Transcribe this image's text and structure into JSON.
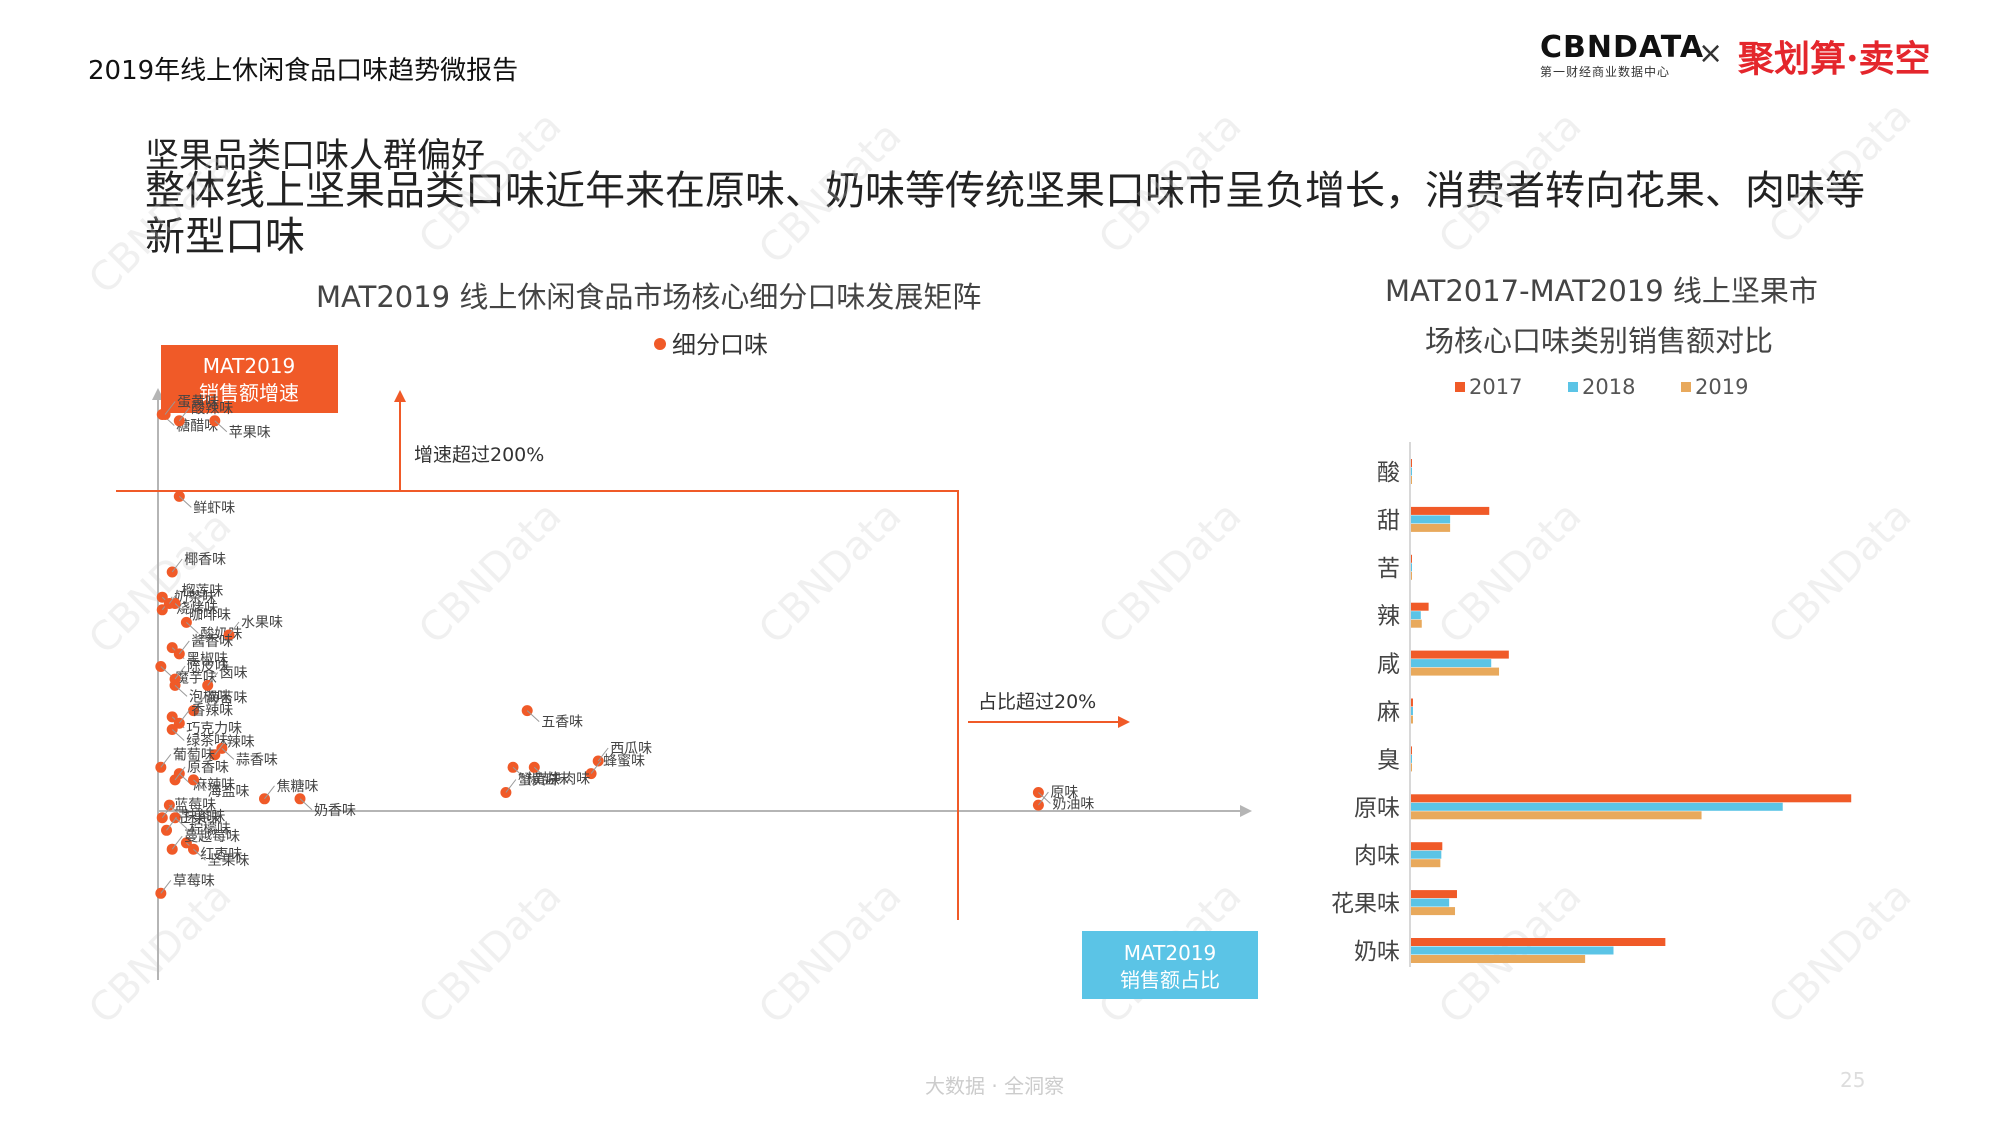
{
  "header": {
    "report_title": "2019年线上休闲食品口味趋势微报告",
    "logo_cbn": "CBNDATA",
    "logo_cbn_sub": "第一财经商业数据中心",
    "logo_x": "×",
    "logo_partner": "聚划算·卖空"
  },
  "section": {
    "title": "坚果品类口味人群偏好",
    "headline": "整体线上坚果品类口味近年来在原味、奶味等传统坚果口味市呈负增长，消费者转向花果、肉味等新型口味"
  },
  "watermark": "CBNData",
  "footer": {
    "slogan": "大数据 · 全洞察",
    "page_number": "25"
  },
  "colors": {
    "orange": "#f05a28",
    "blue": "#5bc4e6",
    "tan": "#e8a95c",
    "axis": "#b5b5b5"
  },
  "chart_data": [
    {
      "type": "scatter",
      "title": "MAT2019 线上休闲食品市场核心细分口味发展矩阵",
      "legend": [
        "细分口味"
      ],
      "legend_placement": "top",
      "y_axis_badge": [
        "MAT2019",
        "销售额增速"
      ],
      "x_axis_badge": [
        "MAT2019",
        "销售额占比"
      ],
      "growth_threshold_label": "增速超过200%",
      "share_threshold_label": "占比超过20%",
      "points": [
        {
          "label": "糖醋味",
          "x": 0.3,
          "y": 95
        },
        {
          "label": "蛋黄味",
          "x": 0.5,
          "y": 95
        },
        {
          "label": "苹果味",
          "x": 4.0,
          "y": 94
        },
        {
          "label": "酸辣味",
          "x": 1.5,
          "y": 94
        },
        {
          "label": "鲜虾味",
          "x": 1.5,
          "y": 82
        },
        {
          "label": "椰香味",
          "x": 1.0,
          "y": 70
        },
        {
          "label": "烧烤味",
          "x": 0.3,
          "y": 66
        },
        {
          "label": "奶茶味",
          "x": 0.3,
          "y": 64
        },
        {
          "label": "咖啡味",
          "x": 1.2,
          "y": 65
        },
        {
          "label": "榴莲味",
          "x": 0.8,
          "y": 65
        },
        {
          "label": "酸奶味",
          "x": 2.0,
          "y": 62
        },
        {
          "label": "水果味",
          "x": 5.0,
          "y": 60
        },
        {
          "label": "黑椒味",
          "x": 1.0,
          "y": 58
        },
        {
          "label": "酱香味",
          "x": 1.5,
          "y": 57
        },
        {
          "label": "魔芋味",
          "x": 0.2,
          "y": 55
        },
        {
          "label": "陈皮味",
          "x": 1.2,
          "y": 53
        },
        {
          "label": "泡椒味",
          "x": 1.2,
          "y": 52
        },
        {
          "label": "卤味",
          "x": 3.5,
          "y": 52
        },
        {
          "label": "五香味",
          "x": 26.0,
          "y": 48
        },
        {
          "label": "海苔味",
          "x": 2.5,
          "y": 48
        },
        {
          "label": "巧克力味",
          "x": 1.0,
          "y": 47
        },
        {
          "label": "香辣味",
          "x": 1.5,
          "y": 46
        },
        {
          "label": "绿茶味",
          "x": 1.0,
          "y": 45
        },
        {
          "label": "西瓜味",
          "x": 31.0,
          "y": 40
        },
        {
          "label": "蒜香味",
          "x": 4.5,
          "y": 42
        },
        {
          "label": "辣味",
          "x": 4.0,
          "y": 41
        },
        {
          "label": "椒盐味",
          "x": 25.0,
          "y": 39
        },
        {
          "label": "葡萄味",
          "x": 0.2,
          "y": 39
        },
        {
          "label": "麻辣味",
          "x": 1.5,
          "y": 38
        },
        {
          "label": "原香味",
          "x": 1.2,
          "y": 37
        },
        {
          "label": "海盐味",
          "x": 2.5,
          "y": 37
        },
        {
          "label": "蜂蜜味",
          "x": 30.5,
          "y": 38
        },
        {
          "label": "奶香味",
          "x": 10.0,
          "y": 34
        },
        {
          "label": "焦糖味",
          "x": 7.5,
          "y": 34
        },
        {
          "label": "牛肉味",
          "x": 26.5,
          "y": 39
        },
        {
          "label": "蟹黄味",
          "x": 24.5,
          "y": 35
        },
        {
          "label": "奶油味",
          "x": 62.0,
          "y": 35
        },
        {
          "label": "原味",
          "x": 62.0,
          "y": 33
        },
        {
          "label": "抹茶味",
          "x": 0.8,
          "y": 33
        },
        {
          "label": "蓝莓味",
          "x": 0.3,
          "y": 31
        },
        {
          "label": "柠檬味",
          "x": 1.2,
          "y": 31
        },
        {
          "label": "芒果味",
          "x": 0.6,
          "y": 29
        },
        {
          "label": "红枣味",
          "x": 2.0,
          "y": 27
        },
        {
          "label": "蔓越莓味",
          "x": 1.0,
          "y": 26
        },
        {
          "label": "坚果味",
          "x": 2.5,
          "y": 26
        },
        {
          "label": "草莓味",
          "x": 0.2,
          "y": 19
        }
      ]
    },
    {
      "type": "bar",
      "orientation": "horizontal",
      "title_line1": "MAT2017-MAT2019 线上坚果市",
      "title_line2": "场核心口味类别销售额对比",
      "categories": [
        "酸",
        "甜",
        "苦",
        "辣",
        "咸",
        "麻",
        "臭",
        "原味",
        "肉味",
        "花果味",
        "奶味"
      ],
      "series": [
        {
          "name": "2017",
          "color": "#f05a28",
          "values": [
            0.1,
            8.0,
            0.1,
            1.8,
            10.0,
            0.2,
            0.1,
            45.0,
            3.2,
            4.7,
            26.0
          ]
        },
        {
          "name": "2018",
          "color": "#5bc4e6",
          "values": [
            0.1,
            4.0,
            0.1,
            1.0,
            8.2,
            0.2,
            0.1,
            38.0,
            3.1,
            3.9,
            20.7
          ]
        },
        {
          "name": "2019",
          "color": "#e8a95c",
          "values": [
            0.1,
            4.0,
            0.1,
            1.1,
            9.0,
            0.2,
            0.1,
            29.7,
            3.0,
            4.5,
            17.8
          ]
        }
      ],
      "legend_placement": "top",
      "xlim": [
        0,
        46
      ],
      "grid": false
    }
  ]
}
